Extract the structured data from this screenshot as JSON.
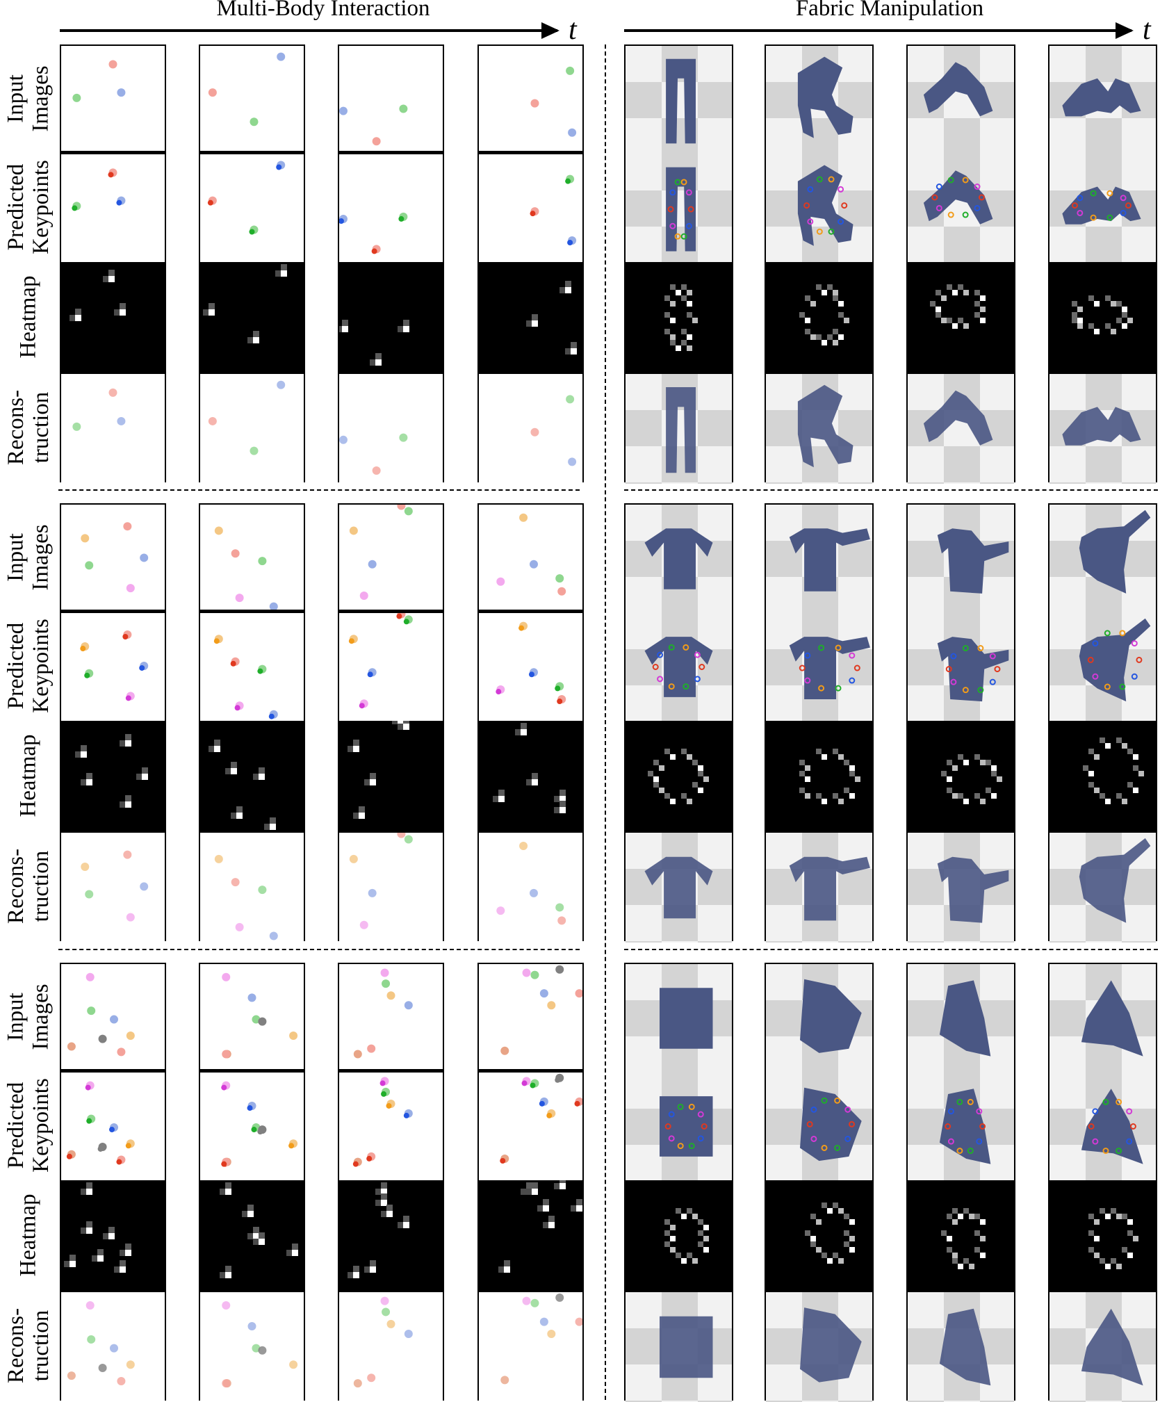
{
  "headers": {
    "left_title": "Multi-Body Interaction",
    "right_title": "Fabric Manipulation",
    "time_symbol": "t"
  },
  "row_labels": {
    "input": [
      "Input",
      "Images"
    ],
    "keypoints": [
      "Predicted",
      "Keypoints"
    ],
    "heatmap": [
      "Heatmap"
    ],
    "reconstruction": [
      "Recons-",
      "truction"
    ]
  },
  "colors": {
    "ball_red": "#f4a29a",
    "ball_blue": "#98aee6",
    "ball_green": "#8fd78f",
    "ball_orange": "#f4c784",
    "ball_pink": "#f3a9ee",
    "ball_gray": "#808080",
    "ball_salmon": "#e8a486",
    "keypoint_red": "#e0391f",
    "keypoint_blue": "#2456e0",
    "keypoint_green": "#1fae2a",
    "keypoint_orange": "#f29c1a",
    "keypoint_magenta": "#d33ad6",
    "fabric": "#4a5784",
    "checker_light": "#f2f2f2",
    "checker_dark": "#d4d4d4",
    "heatmap_background": "#000000"
  },
  "panel_content": {
    "multi_body_groups": [
      "3 bodies",
      "5 bodies",
      "7 bodies"
    ],
    "fabric_groups": [
      "pants",
      "shirt",
      "square cloth"
    ],
    "frames_per_sequence": 4
  }
}
